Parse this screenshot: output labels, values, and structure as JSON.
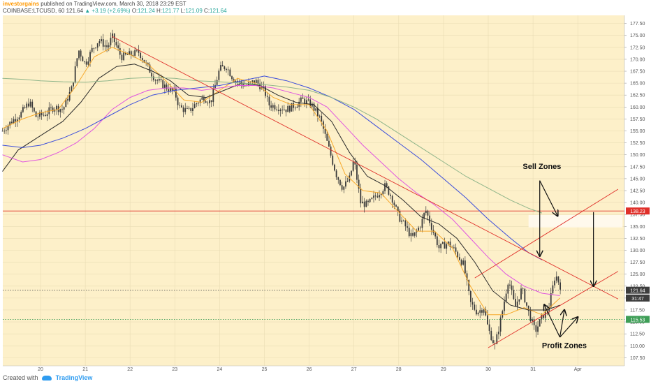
{
  "header": {
    "author": "investorgains",
    "published": "published on TradingView.com, March 30, 2018 23:29 EST",
    "symbol": "COINBASE:LTCUSD, 60",
    "last": "121.64",
    "change": "+3.19 (+2.69%)",
    "open_label": "O:",
    "open": "121.24",
    "high_label": "H:",
    "high": "121.77",
    "low_label": "L:",
    "low": "121.09",
    "close_label": "C:",
    "close": "121.64"
  },
  "footer": {
    "created_with": "Created with",
    "brand": "TradingView"
  },
  "colors": {
    "background": "#fdf0c9",
    "candles": "#3a3a3a",
    "ema_orange": "#f7a92b",
    "ema_dark": "#2b2b2b",
    "ema_magenta": "#e055e0",
    "ema_blue": "#3b4ddb",
    "ema_green": "#8fb58a",
    "trendline": "#e0302a",
    "price_badge_dark": "#3d3d3d",
    "price_badge_green": "#3e9e57",
    "price_badge_red": "#e0302a"
  },
  "chart_data": {
    "type": "candlestick",
    "x_ticks": [
      "20",
      "21",
      "22",
      "23",
      "24",
      "25",
      "26",
      "27",
      "28",
      "29",
      "30",
      "31",
      "Apr"
    ],
    "y_ticks": [
      "107.50",
      "110.00",
      "112.50",
      "115.00",
      "117.50",
      "120.00",
      "122.50",
      "125.00",
      "127.50",
      "130.00",
      "132.50",
      "135.00",
      "137.50",
      "140.00",
      "142.50",
      "145.00",
      "147.50",
      "150.00",
      "152.50",
      "155.00",
      "157.50",
      "160.00",
      "162.50",
      "165.00",
      "167.50",
      "170.00",
      "172.50",
      "175.00",
      "177.50"
    ],
    "ylim": [
      105.8,
      179.2
    ],
    "grid": true,
    "price_labels": [
      {
        "value": 138.23,
        "text": "138.23",
        "color": "red"
      },
      {
        "value": 121.64,
        "text": "121.64",
        "color": "dark"
      },
      {
        "value": 120.0,
        "text": "31:47",
        "color": "dark"
      },
      {
        "value": 115.53,
        "text": "115.53",
        "color": "green"
      }
    ],
    "horizontal_lines": [
      {
        "value": 138.23,
        "style": "solid",
        "color": "red"
      },
      {
        "value": 121.64,
        "style": "dotted",
        "color": "dark"
      },
      {
        "value": 115.53,
        "style": "dotted",
        "color": "green"
      }
    ],
    "trendlines": [
      {
        "from": [
          21.6,
          174.8
        ],
        "to": [
          32.9,
          119.8
        ]
      },
      {
        "from": [
          29.7,
          124.2
        ],
        "to": [
          32.9,
          142.8
        ]
      },
      {
        "from": [
          30.0,
          109.6
        ],
        "to": [
          32.9,
          125.6
        ]
      }
    ],
    "annotations": [
      {
        "text": "Sell Zones",
        "x": 31.2,
        "y": 147.0
      },
      {
        "text": "Profit Zones",
        "x": 31.7,
        "y": 109.5
      }
    ],
    "arrows": [
      {
        "from": [
          31.15,
          144.6
        ],
        "to": [
          31.55,
          137.2
        ]
      },
      {
        "from": [
          31.15,
          144.6
        ],
        "to": [
          31.15,
          128.8
        ]
      },
      {
        "from": [
          32.35,
          138.0
        ],
        "to": [
          32.35,
          122.5
        ]
      },
      {
        "from": [
          31.6,
          111.8
        ],
        "to": [
          31.25,
          118.6
        ]
      },
      {
        "from": [
          31.6,
          111.8
        ],
        "to": [
          31.7,
          117.5
        ]
      },
      {
        "from": [
          31.6,
          111.8
        ],
        "to": [
          32.0,
          116.0
        ]
      }
    ],
    "highlight_zone": {
      "x_from": 30.9,
      "x_to": 33.0,
      "y_from": 134.8,
      "y_to": 137.4
    },
    "series": [
      {
        "kind": "price_path",
        "points": [
          [
            19.15,
            155.0
          ],
          [
            19.35,
            157.0
          ],
          [
            19.55,
            158.5
          ],
          [
            19.75,
            161.0
          ],
          [
            19.9,
            158.0
          ],
          [
            20.1,
            158.5
          ],
          [
            20.3,
            160.0
          ],
          [
            20.5,
            159.5
          ],
          [
            20.7,
            164.0
          ],
          [
            20.85,
            172.0
          ],
          [
            21.0,
            169.0
          ],
          [
            21.15,
            172.0
          ],
          [
            21.3,
            174.0
          ],
          [
            21.5,
            172.5
          ],
          [
            21.6,
            174.8
          ],
          [
            21.8,
            170.5
          ],
          [
            22.0,
            171.0
          ],
          [
            22.2,
            171.5
          ],
          [
            22.35,
            169.0
          ],
          [
            22.55,
            166.0
          ],
          [
            22.75,
            164.5
          ],
          [
            23.0,
            163.0
          ],
          [
            23.1,
            160.0
          ],
          [
            23.3,
            159.0
          ],
          [
            23.5,
            161.0
          ],
          [
            23.65,
            162.0
          ],
          [
            23.8,
            161.0
          ],
          [
            24.0,
            168.0
          ],
          [
            24.15,
            168.5
          ],
          [
            24.3,
            166.0
          ],
          [
            24.45,
            165.0
          ],
          [
            24.6,
            164.5
          ],
          [
            24.8,
            165.5
          ],
          [
            25.0,
            163.5
          ],
          [
            25.1,
            160.5
          ],
          [
            25.3,
            160.0
          ],
          [
            25.5,
            159.5
          ],
          [
            25.7,
            160.5
          ],
          [
            25.85,
            161.5
          ],
          [
            26.05,
            160.5
          ],
          [
            26.25,
            157.5
          ],
          [
            26.45,
            151.0
          ],
          [
            26.6,
            146.0
          ],
          [
            26.75,
            143.0
          ],
          [
            26.9,
            145.0
          ],
          [
            27.0,
            149.0
          ],
          [
            27.15,
            140.0
          ],
          [
            27.3,
            139.5
          ],
          [
            27.5,
            141.5
          ],
          [
            27.7,
            143.5
          ],
          [
            27.85,
            141.0
          ],
          [
            28.0,
            137.0
          ],
          [
            28.15,
            135.0
          ],
          [
            28.3,
            132.5
          ],
          [
            28.5,
            135.5
          ],
          [
            28.6,
            138.5
          ],
          [
            28.75,
            134.5
          ],
          [
            28.9,
            130.5
          ],
          [
            29.1,
            131.5
          ],
          [
            29.25,
            130.0
          ],
          [
            29.45,
            127.0
          ],
          [
            29.6,
            119.0
          ],
          [
            29.75,
            117.0
          ],
          [
            29.9,
            118.0
          ],
          [
            30.0,
            113.5
          ],
          [
            30.15,
            110.0
          ],
          [
            30.3,
            116.5
          ],
          [
            30.45,
            124.0
          ],
          [
            30.6,
            118.0
          ],
          [
            30.75,
            122.0
          ],
          [
            30.9,
            117.0
          ],
          [
            31.05,
            113.0
          ],
          [
            31.2,
            116.0
          ],
          [
            31.35,
            118.0
          ],
          [
            31.5,
            125.0
          ],
          [
            31.65,
            121.6
          ]
        ]
      },
      {
        "name": "",
        "color": "orange",
        "points": [
          [
            19.15,
            155.5
          ],
          [
            19.6,
            157.5
          ],
          [
            20.0,
            158.8
          ],
          [
            20.4,
            159.5
          ],
          [
            20.8,
            164.5
          ],
          [
            21.2,
            170.5
          ],
          [
            21.6,
            172.5
          ],
          [
            22.0,
            171.0
          ],
          [
            22.4,
            169.0
          ],
          [
            22.8,
            165.5
          ],
          [
            23.2,
            161.5
          ],
          [
            23.6,
            161.0
          ],
          [
            24.0,
            163.5
          ],
          [
            24.4,
            166.0
          ],
          [
            24.8,
            165.0
          ],
          [
            25.2,
            162.0
          ],
          [
            25.6,
            160.5
          ],
          [
            26.0,
            160.5
          ],
          [
            26.4,
            155.0
          ],
          [
            26.8,
            146.0
          ],
          [
            27.2,
            142.5
          ],
          [
            27.6,
            142.0
          ],
          [
            28.0,
            138.0
          ],
          [
            28.4,
            134.0
          ],
          [
            28.8,
            134.0
          ],
          [
            29.2,
            130.5
          ],
          [
            29.6,
            122.5
          ],
          [
            30.0,
            116.5
          ],
          [
            30.4,
            116.5
          ],
          [
            30.8,
            118.0
          ],
          [
            31.2,
            116.5
          ],
          [
            31.6,
            120.0
          ]
        ]
      },
      {
        "name": "",
        "color": "dark",
        "points": [
          [
            19.15,
            146.5
          ],
          [
            19.5,
            151.0
          ],
          [
            20.0,
            154.0
          ],
          [
            20.5,
            157.0
          ],
          [
            20.9,
            161.0
          ],
          [
            21.3,
            166.0
          ],
          [
            21.7,
            168.5
          ],
          [
            22.1,
            169.0
          ],
          [
            22.5,
            167.5
          ],
          [
            22.9,
            165.5
          ],
          [
            23.3,
            162.5
          ],
          [
            23.7,
            162.0
          ],
          [
            24.1,
            163.5
          ],
          [
            24.5,
            165.0
          ],
          [
            24.9,
            164.5
          ],
          [
            25.3,
            162.5
          ],
          [
            25.7,
            161.0
          ],
          [
            26.1,
            160.5
          ],
          [
            26.5,
            157.0
          ],
          [
            26.9,
            150.5
          ],
          [
            27.3,
            145.5
          ],
          [
            27.7,
            143.5
          ],
          [
            28.1,
            140.5
          ],
          [
            28.5,
            137.0
          ],
          [
            28.9,
            135.5
          ],
          [
            29.3,
            132.5
          ],
          [
            29.7,
            127.5
          ],
          [
            30.1,
            121.5
          ],
          [
            30.5,
            118.5
          ],
          [
            30.9,
            117.5
          ],
          [
            31.3,
            117.5
          ],
          [
            31.6,
            118.5
          ]
        ]
      },
      {
        "name": "",
        "color": "magenta",
        "points": [
          [
            19.15,
            150.0
          ],
          [
            19.6,
            148.5
          ],
          [
            20.0,
            149.0
          ],
          [
            20.4,
            150.5
          ],
          [
            20.8,
            152.5
          ],
          [
            21.2,
            155.5
          ],
          [
            21.6,
            159.5
          ],
          [
            22.0,
            162.0
          ],
          [
            22.4,
            163.5
          ],
          [
            22.8,
            164.0
          ],
          [
            23.2,
            164.0
          ],
          [
            23.6,
            163.5
          ],
          [
            24.0,
            164.0
          ],
          [
            24.4,
            164.5
          ],
          [
            24.8,
            164.5
          ],
          [
            25.2,
            164.0
          ],
          [
            25.6,
            163.0
          ],
          [
            26.0,
            162.0
          ],
          [
            26.4,
            160.0
          ],
          [
            26.8,
            156.0
          ],
          [
            27.2,
            152.0
          ],
          [
            27.6,
            148.5
          ],
          [
            28.0,
            145.0
          ],
          [
            28.4,
            142.0
          ],
          [
            28.8,
            139.5
          ],
          [
            29.2,
            136.5
          ],
          [
            29.6,
            132.5
          ],
          [
            30.0,
            128.5
          ],
          [
            30.4,
            125.0
          ],
          [
            30.8,
            122.5
          ],
          [
            31.2,
            121.0
          ],
          [
            31.6,
            120.5
          ]
        ]
      },
      {
        "name": "",
        "color": "blue",
        "points": [
          [
            19.15,
            152.0
          ],
          [
            19.6,
            151.5
          ],
          [
            20.0,
            152.0
          ],
          [
            20.5,
            153.5
          ],
          [
            21.0,
            155.5
          ],
          [
            21.5,
            158.0
          ],
          [
            22.0,
            160.5
          ],
          [
            22.5,
            162.5
          ],
          [
            23.0,
            163.5
          ],
          [
            23.5,
            164.0
          ],
          [
            24.0,
            164.5
          ],
          [
            24.5,
            165.5
          ],
          [
            25.0,
            166.5
          ],
          [
            25.5,
            165.5
          ],
          [
            26.0,
            164.0
          ],
          [
            26.5,
            162.0
          ],
          [
            27.0,
            159.5
          ],
          [
            27.5,
            156.0
          ],
          [
            28.0,
            152.5
          ],
          [
            28.5,
            149.0
          ],
          [
            29.0,
            145.0
          ],
          [
            29.5,
            141.0
          ],
          [
            30.0,
            136.5
          ],
          [
            30.5,
            132.5
          ],
          [
            30.9,
            129.5
          ],
          [
            31.2,
            128.0
          ]
        ]
      },
      {
        "name": "",
        "color": "green",
        "points": [
          [
            19.15,
            166.0
          ],
          [
            19.6,
            165.8
          ],
          [
            20.0,
            165.5
          ],
          [
            20.5,
            165.3
          ],
          [
            21.0,
            165.2
          ],
          [
            21.5,
            165.5
          ],
          [
            22.0,
            166.0
          ],
          [
            22.5,
            166.2
          ],
          [
            23.0,
            166.0
          ],
          [
            23.5,
            165.5
          ],
          [
            24.0,
            165.3
          ],
          [
            24.5,
            165.0
          ],
          [
            25.0,
            164.7
          ],
          [
            25.5,
            164.2
          ],
          [
            26.0,
            163.5
          ],
          [
            26.5,
            162.0
          ],
          [
            27.0,
            160.0
          ],
          [
            27.5,
            157.5
          ],
          [
            28.0,
            154.5
          ],
          [
            28.5,
            151.5
          ],
          [
            29.0,
            148.5
          ],
          [
            29.5,
            145.5
          ],
          [
            30.0,
            143.0
          ],
          [
            30.5,
            140.5
          ],
          [
            30.9,
            138.8
          ],
          [
            31.2,
            137.8
          ]
        ]
      }
    ]
  }
}
